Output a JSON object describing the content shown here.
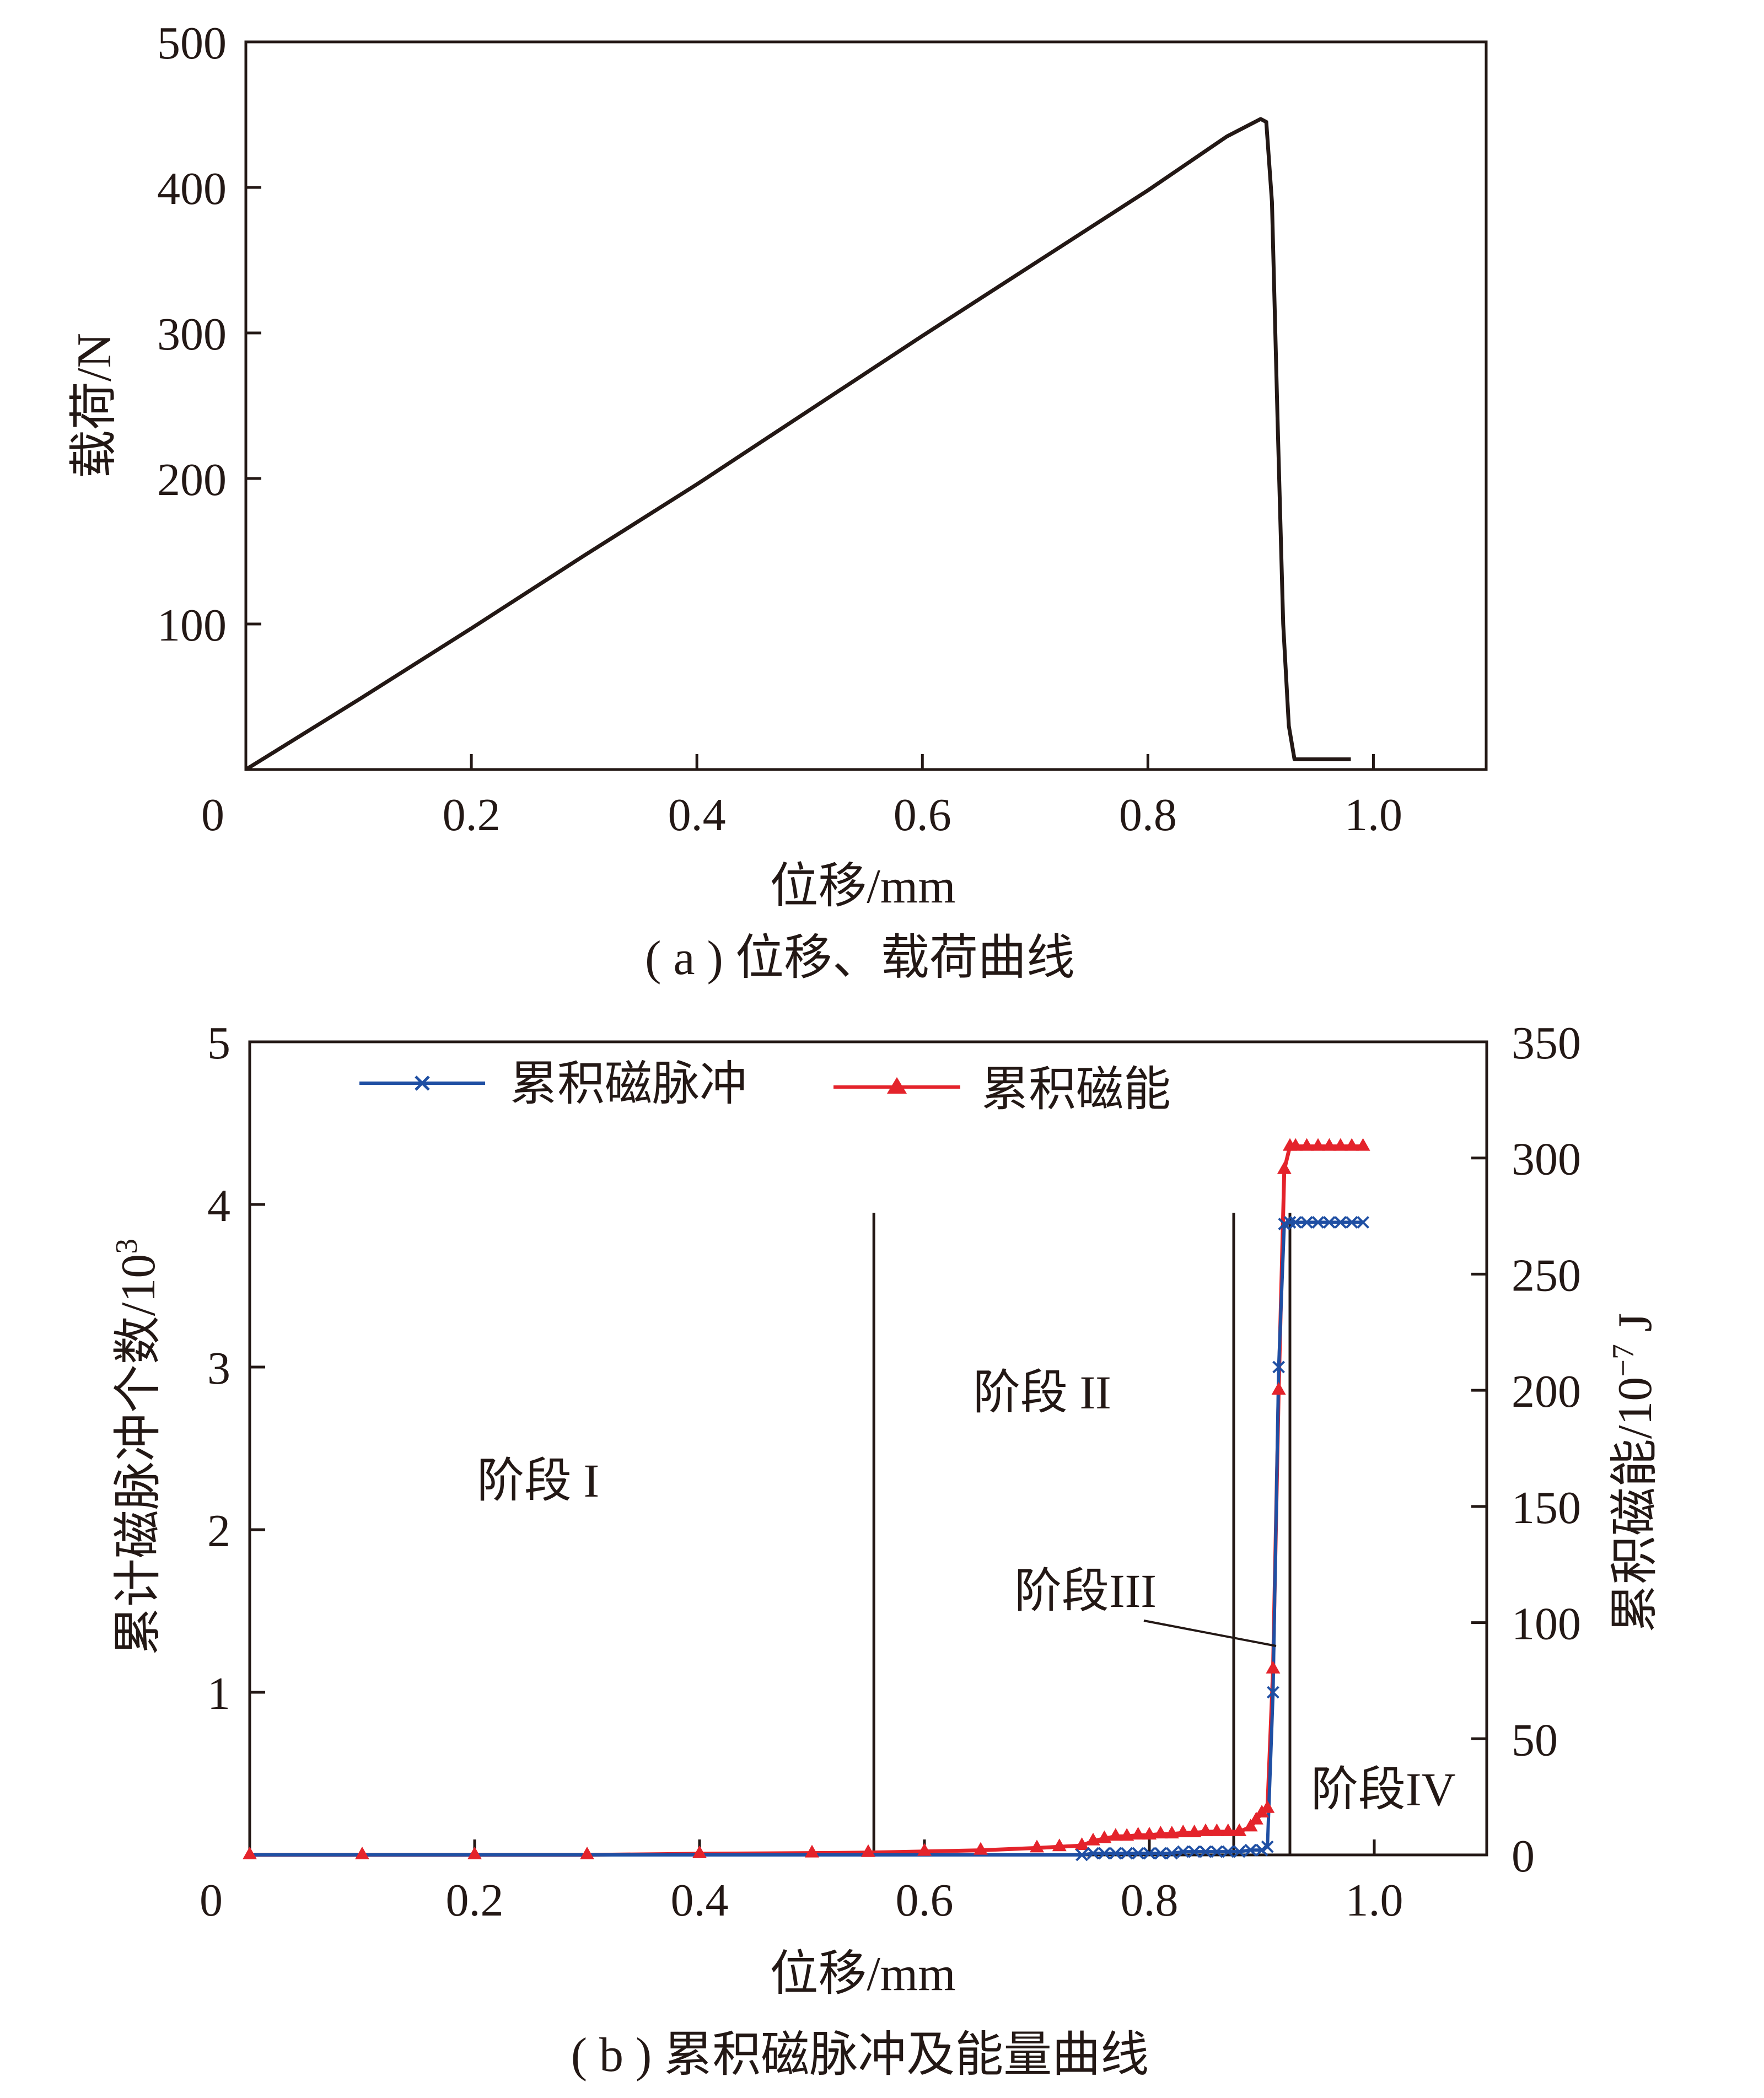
{
  "chart_data": [
    {
      "type": "line",
      "xlabel": "位移/mm",
      "ylabel": "载荷/N",
      "caption": "( a ) 位移、载荷曲线",
      "xlim": [
        0,
        1.1
      ],
      "ylim": [
        0,
        500
      ],
      "x_ticks": [
        0,
        0.2,
        0.4,
        0.6,
        0.8,
        1.0
      ],
      "x_tick_labels": [
        "0",
        "0.2",
        "0.4",
        "0.6",
        "0.8",
        "1.0"
      ],
      "y_ticks": [
        100,
        200,
        300,
        400,
        500
      ],
      "y_tick_labels": [
        "100",
        "200",
        "300",
        "400",
        "500"
      ],
      "series": [
        {
          "color": "#231815",
          "x": [
            0.0,
            0.1,
            0.2,
            0.3,
            0.4,
            0.5,
            0.6,
            0.7,
            0.8,
            0.87,
            0.9,
            0.905,
            0.91,
            0.915,
            0.92,
            0.925,
            0.93,
            0.95,
            0.98
          ],
          "y": [
            0,
            48,
            97,
            147,
            196,
            247,
            298,
            348,
            398,
            435,
            447,
            445,
            390,
            240,
            100,
            30,
            7,
            7,
            7
          ]
        }
      ]
    },
    {
      "type": "line",
      "xlabel": "位移/mm",
      "ylabel": "累计磁脉冲个数/10",
      "ylabel_sup": "3",
      "y2label": "累积磁能/10",
      "y2label_sup": "−7",
      "y2label_unit": " J",
      "caption": "( b ) 累积磁脉冲及能量曲线",
      "xlim": [
        0,
        1.1
      ],
      "ylim": [
        0,
        5
      ],
      "y2lim": [
        0,
        350
      ],
      "x_ticks": [
        0,
        0.2,
        0.4,
        0.6,
        0.8,
        1.0
      ],
      "x_tick_labels": [
        "0",
        "0.2",
        "0.4",
        "0.6",
        "0.8",
        "1.0"
      ],
      "y_ticks": [
        0,
        1,
        2,
        3,
        4,
        5
      ],
      "y_tick_labels": [
        "",
        "1",
        "2",
        "3",
        "4",
        "5"
      ],
      "y2_ticks": [
        0,
        50,
        100,
        150,
        200,
        250,
        300,
        350
      ],
      "y2_tick_labels": [
        "0",
        "50",
        "100",
        "150",
        "200",
        "250",
        "300",
        "350"
      ],
      "series": [
        {
          "name": "累积磁脉冲",
          "axis": "left",
          "color": "#1f4fa3",
          "marker": "x",
          "x": [
            0.0,
            0.1,
            0.2,
            0.3,
            0.4,
            0.5,
            0.55,
            0.6,
            0.65,
            0.7,
            0.74,
            0.75,
            0.76,
            0.77,
            0.78,
            0.79,
            0.8,
            0.81,
            0.82,
            0.83,
            0.84,
            0.85,
            0.86,
            0.87,
            0.88,
            0.89,
            0.9,
            0.905,
            0.91,
            0.915,
            0.92,
            0.925,
            0.93,
            0.94,
            0.95,
            0.96,
            0.97,
            0.98,
            0.99
          ],
          "y": [
            0,
            0,
            0,
            0,
            0,
            0,
            0,
            0,
            0,
            0,
            0,
            0.01,
            0.01,
            0.01,
            0.01,
            0.01,
            0.01,
            0.01,
            0.01,
            0.02,
            0.02,
            0.02,
            0.02,
            0.02,
            0.02,
            0.03,
            0.03,
            0.05,
            1.0,
            3.0,
            3.88,
            3.89,
            3.89,
            3.89,
            3.89,
            3.89,
            3.89,
            3.89,
            3.89
          ]
        },
        {
          "name": "累积磁能",
          "axis": "right",
          "color": "#e4232b",
          "marker": "triangle",
          "x": [
            0.0,
            0.1,
            0.2,
            0.3,
            0.4,
            0.5,
            0.55,
            0.6,
            0.65,
            0.7,
            0.72,
            0.74,
            0.75,
            0.76,
            0.77,
            0.78,
            0.79,
            0.8,
            0.81,
            0.82,
            0.83,
            0.84,
            0.85,
            0.86,
            0.87,
            0.88,
            0.89,
            0.895,
            0.9,
            0.905,
            0.91,
            0.915,
            0.92,
            0.925,
            0.93,
            0.94,
            0.95,
            0.96,
            0.97,
            0.98,
            0.99
          ],
          "y": [
            0,
            0,
            0,
            0,
            0.5,
            0.8,
            1,
            1.5,
            2,
            3,
            3.5,
            4,
            6,
            7,
            8,
            8,
            8.5,
            8.5,
            9,
            9,
            9.5,
            9.5,
            10,
            10,
            10,
            10,
            12,
            15,
            18,
            20,
            80,
            200,
            295,
            305,
            305,
            305,
            305,
            305,
            305,
            305,
            305
          ]
        }
      ],
      "annotations": {
        "stage_1": "阶段 I",
        "stage_2": "阶段 II",
        "stage_3": "阶段III",
        "stage_4": "阶段IV"
      },
      "stage_boundaries": [
        0.555,
        0.875,
        0.925
      ]
    }
  ]
}
